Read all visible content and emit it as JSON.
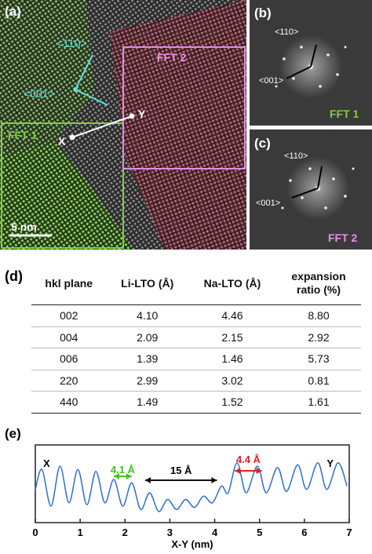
{
  "panel_a": {
    "label": "(a)",
    "dir_110": "<110>",
    "dir_001": "<001>",
    "fft2": "FFT 2",
    "fft1": "FFT 1",
    "point_x": "X",
    "point_y": "Y",
    "scale": "5 nm"
  },
  "panel_b": {
    "label": "(b)",
    "dir_110": "<110>",
    "dir_001": "<001>",
    "fft": "FFT 1"
  },
  "panel_c": {
    "label": "(c)",
    "dir_110": "<110>",
    "dir_001": "<001>",
    "fft": "FFT 2"
  },
  "table": {
    "label": "(d)",
    "headers": [
      "hkl plane",
      "Li-LTO (Å)",
      "Na-LTO (Å)",
      "expansion ratio (%)"
    ],
    "rows": [
      [
        "002",
        "4.10",
        "4.46",
        "8.80"
      ],
      [
        "004",
        "2.09",
        "2.15",
        "2.92"
      ],
      [
        "006",
        "1.39",
        "1.46",
        "5.73"
      ],
      [
        "220",
        "2.99",
        "3.02",
        "0.81"
      ],
      [
        "440",
        "1.49",
        "1.52",
        "1.61"
      ]
    ]
  },
  "chart_data": {
    "type": "line",
    "label": "(e)",
    "x_label": "X-Y (nm)",
    "color": "#2f6fd0",
    "x": [
      0.0,
      0.15,
      0.35,
      0.55,
      0.75,
      0.95,
      1.15,
      1.35,
      1.55,
      1.75,
      1.95,
      2.15,
      2.35,
      2.55,
      2.75,
      2.95,
      3.15,
      3.35,
      3.55,
      3.75,
      3.95,
      4.15,
      4.3,
      4.5,
      4.7,
      4.95,
      5.15,
      5.4,
      5.6,
      5.85,
      6.05,
      6.3,
      6.5,
      6.75,
      6.95
    ],
    "y": [
      0.45,
      0.75,
      0.2,
      0.8,
      0.25,
      0.75,
      0.22,
      0.72,
      0.25,
      0.6,
      0.2,
      0.55,
      0.15,
      0.4,
      0.12,
      0.3,
      0.15,
      0.3,
      0.18,
      0.35,
      0.25,
      0.5,
      0.4,
      0.85,
      0.4,
      0.8,
      0.4,
      0.78,
      0.42,
      0.82,
      0.45,
      0.85,
      0.45,
      0.85,
      0.5
    ],
    "xlim": [
      0,
      7
    ],
    "ylim": [
      0,
      1
    ],
    "xticks": [
      0,
      1,
      2,
      3,
      4,
      5,
      6,
      7
    ],
    "annotations": {
      "start": "X",
      "end": "Y",
      "spacing_li": "4.1 Å",
      "gap": "15 Å",
      "spacing_na": "4.4 Å"
    }
  }
}
